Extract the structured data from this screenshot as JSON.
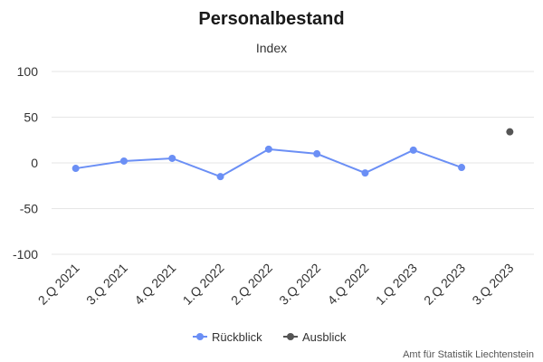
{
  "chart_data": {
    "type": "line",
    "title": "Personalbestand",
    "subtitle": "Index",
    "categories": [
      "2.Q 2021",
      "3.Q 2021",
      "4.Q 2021",
      "1.Q 2022",
      "2.Q 2022",
      "3.Q 2022",
      "4.Q 2022",
      "1.Q 2023",
      "2.Q 2023",
      "3.Q 2023"
    ],
    "yticks": [
      "100",
      "50",
      "0",
      "-50",
      "-100"
    ],
    "ylim": [
      -100,
      100
    ],
    "grid": true,
    "legend_placement": "bottom",
    "series": [
      {
        "name": "Rückblick",
        "color": "#6b8ff5",
        "values": [
          -6,
          2,
          5,
          -15,
          15,
          10,
          -11,
          14,
          -5,
          null
        ]
      },
      {
        "name": "Ausblick",
        "color": "#555555",
        "values": [
          null,
          null,
          null,
          null,
          null,
          null,
          null,
          null,
          null,
          34
        ]
      }
    ]
  },
  "credit": "Amt für Statistik Liechtenstein"
}
